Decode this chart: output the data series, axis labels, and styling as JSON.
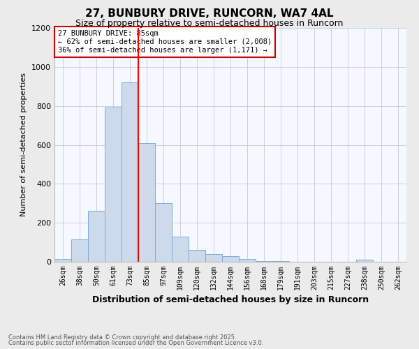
{
  "title1": "27, BUNBURY DRIVE, RUNCORN, WA7 4AL",
  "title2": "Size of property relative to semi-detached houses in Runcorn",
  "xlabel": "Distribution of semi-detached houses by size in Runcorn",
  "ylabel": "Number of semi-detached properties",
  "annotation_title": "27 BUNBURY DRIVE: 85sqm",
  "annotation_line1": "← 62% of semi-detached houses are smaller (2,008)",
  "annotation_line2": "36% of semi-detached houses are larger (1,171) →",
  "footnote1": "Contains HM Land Registry data © Crown copyright and database right 2025.",
  "footnote2": "Contains public sector information licensed under the Open Government Licence v3.0.",
  "categories": [
    "26sqm",
    "38sqm",
    "50sqm",
    "61sqm",
    "73sqm",
    "85sqm",
    "97sqm",
    "109sqm",
    "120sqm",
    "132sqm",
    "144sqm",
    "156sqm",
    "168sqm",
    "179sqm",
    "191sqm",
    "203sqm",
    "215sqm",
    "227sqm",
    "238sqm",
    "250sqm",
    "262sqm"
  ],
  "values": [
    15,
    115,
    260,
    790,
    920,
    610,
    300,
    130,
    60,
    40,
    30,
    15,
    5,
    2,
    1,
    0,
    0,
    0,
    10,
    0,
    0
  ],
  "bar_color": "#ccdaec",
  "bar_edge_color": "#7aacda",
  "red_line_x": 4.5,
  "ylim": [
    0,
    1200
  ],
  "yticks": [
    0,
    200,
    400,
    600,
    800,
    1000,
    1200
  ],
  "background_color": "#ebebeb",
  "plot_bg_color": "#f5f8ff",
  "title_fontsize": 11,
  "subtitle_fontsize": 9,
  "ylabel_fontsize": 8,
  "xlabel_fontsize": 9,
  "annotation_fontsize": 7.5,
  "annotation_box_color": "#ffffff",
  "annotation_box_edge": "#cc0000",
  "footnote_fontsize": 6,
  "footnote_color": "#555555"
}
